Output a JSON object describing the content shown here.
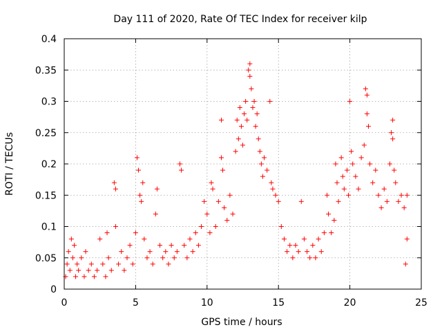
{
  "chart_data": {
    "type": "scatter",
    "title": "Day 111 of 2020, Rate Of TEC Index for receiver kilp",
    "xlabel": "GPS time / hours",
    "ylabel": "ROTI / TECUs",
    "xlim": [
      0,
      25
    ],
    "ylim": [
      0,
      0.4
    ],
    "xticks": [
      0,
      5,
      10,
      15,
      20,
      25
    ],
    "yticks": [
      0,
      0.05,
      0.1,
      0.15,
      0.2,
      0.25,
      0.3,
      0.35,
      0.4
    ],
    "xtick_labels": [
      "0",
      "5",
      "10",
      "15",
      "20",
      "25"
    ],
    "ytick_labels": [
      "0",
      "0.05",
      "0.1",
      "0.15",
      "0.2",
      "0.25",
      "0.3",
      "0.35",
      "0.4"
    ],
    "grid": true,
    "marker": "+",
    "marker_color": "#ff0000",
    "series": [
      {
        "name": "ROTI",
        "points": [
          [
            0.1,
            0.02
          ],
          [
            0.2,
            0.04
          ],
          [
            0.3,
            0.06
          ],
          [
            0.4,
            0.03
          ],
          [
            0.5,
            0.08
          ],
          [
            0.6,
            0.05
          ],
          [
            0.7,
            0.07
          ],
          [
            0.8,
            0.02
          ],
          [
            0.9,
            0.04
          ],
          [
            1.0,
            0.03
          ],
          [
            1.2,
            0.05
          ],
          [
            1.4,
            0.02
          ],
          [
            1.5,
            0.06
          ],
          [
            1.7,
            0.03
          ],
          [
            1.9,
            0.04
          ],
          [
            2.1,
            0.02
          ],
          [
            2.3,
            0.03
          ],
          [
            2.5,
            0.08
          ],
          [
            2.7,
            0.04
          ],
          [
            2.9,
            0.02
          ],
          [
            3.0,
            0.09
          ],
          [
            3.1,
            0.05
          ],
          [
            3.3,
            0.03
          ],
          [
            3.5,
            0.17
          ],
          [
            3.6,
            0.16
          ],
          [
            3.6,
            0.1
          ],
          [
            3.8,
            0.04
          ],
          [
            4.0,
            0.06
          ],
          [
            4.2,
            0.03
          ],
          [
            4.4,
            0.05
          ],
          [
            4.6,
            0.07
          ],
          [
            4.8,
            0.04
          ],
          [
            5.0,
            0.09
          ],
          [
            5.1,
            0.21
          ],
          [
            5.2,
            0.19
          ],
          [
            5.3,
            0.15
          ],
          [
            5.4,
            0.14
          ],
          [
            5.5,
            0.17
          ],
          [
            5.6,
            0.08
          ],
          [
            5.8,
            0.05
          ],
          [
            6.0,
            0.06
          ],
          [
            6.2,
            0.04
          ],
          [
            6.4,
            0.12
          ],
          [
            6.5,
            0.16
          ],
          [
            6.7,
            0.07
          ],
          [
            6.9,
            0.05
          ],
          [
            7.1,
            0.06
          ],
          [
            7.3,
            0.04
          ],
          [
            7.5,
            0.07
          ],
          [
            7.7,
            0.05
          ],
          [
            7.9,
            0.06
          ],
          [
            8.1,
            0.2
          ],
          [
            8.2,
            0.19
          ],
          [
            8.4,
            0.07
          ],
          [
            8.6,
            0.05
          ],
          [
            8.8,
            0.08
          ],
          [
            9.0,
            0.06
          ],
          [
            9.2,
            0.09
          ],
          [
            9.4,
            0.07
          ],
          [
            9.6,
            0.1
          ],
          [
            9.8,
            0.14
          ],
          [
            10.0,
            0.12
          ],
          [
            10.2,
            0.09
          ],
          [
            10.3,
            0.17
          ],
          [
            10.4,
            0.16
          ],
          [
            10.6,
            0.1
          ],
          [
            10.8,
            0.14
          ],
          [
            11.0,
            0.27
          ],
          [
            11.0,
            0.21
          ],
          [
            11.1,
            0.19
          ],
          [
            11.2,
            0.13
          ],
          [
            11.4,
            0.11
          ],
          [
            11.6,
            0.15
          ],
          [
            11.8,
            0.12
          ],
          [
            12.0,
            0.22
          ],
          [
            12.1,
            0.27
          ],
          [
            12.2,
            0.24
          ],
          [
            12.3,
            0.29
          ],
          [
            12.4,
            0.26
          ],
          [
            12.5,
            0.23
          ],
          [
            12.6,
            0.28
          ],
          [
            12.7,
            0.3
          ],
          [
            12.8,
            0.27
          ],
          [
            12.9,
            0.35
          ],
          [
            13.0,
            0.36
          ],
          [
            13.0,
            0.34
          ],
          [
            13.1,
            0.32
          ],
          [
            13.2,
            0.29
          ],
          [
            13.3,
            0.3
          ],
          [
            13.4,
            0.26
          ],
          [
            13.5,
            0.28
          ],
          [
            13.6,
            0.24
          ],
          [
            13.7,
            0.22
          ],
          [
            13.8,
            0.2
          ],
          [
            13.9,
            0.18
          ],
          [
            14.0,
            0.21
          ],
          [
            14.2,
            0.19
          ],
          [
            14.4,
            0.3
          ],
          [
            14.5,
            0.17
          ],
          [
            14.6,
            0.16
          ],
          [
            14.8,
            0.15
          ],
          [
            15.0,
            0.14
          ],
          [
            15.2,
            0.1
          ],
          [
            15.4,
            0.08
          ],
          [
            15.6,
            0.06
          ],
          [
            15.8,
            0.07
          ],
          [
            16.0,
            0.05
          ],
          [
            16.2,
            0.07
          ],
          [
            16.4,
            0.06
          ],
          [
            16.6,
            0.14
          ],
          [
            16.8,
            0.08
          ],
          [
            17.0,
            0.06
          ],
          [
            17.2,
            0.05
          ],
          [
            17.4,
            0.07
          ],
          [
            17.6,
            0.05
          ],
          [
            17.8,
            0.08
          ],
          [
            18.0,
            0.06
          ],
          [
            18.2,
            0.09
          ],
          [
            18.4,
            0.15
          ],
          [
            18.5,
            0.12
          ],
          [
            18.7,
            0.09
          ],
          [
            18.9,
            0.11
          ],
          [
            19.0,
            0.2
          ],
          [
            19.1,
            0.17
          ],
          [
            19.2,
            0.14
          ],
          [
            19.4,
            0.21
          ],
          [
            19.5,
            0.18
          ],
          [
            19.6,
            0.16
          ],
          [
            19.8,
            0.19
          ],
          [
            19.9,
            0.15
          ],
          [
            20.0,
            0.3
          ],
          [
            20.1,
            0.22
          ],
          [
            20.2,
            0.2
          ],
          [
            20.4,
            0.18
          ],
          [
            20.6,
            0.16
          ],
          [
            20.8,
            0.21
          ],
          [
            21.0,
            0.23
          ],
          [
            21.1,
            0.32
          ],
          [
            21.2,
            0.31
          ],
          [
            21.2,
            0.28
          ],
          [
            21.3,
            0.26
          ],
          [
            21.4,
            0.2
          ],
          [
            21.6,
            0.17
          ],
          [
            21.8,
            0.19
          ],
          [
            22.0,
            0.15
          ],
          [
            22.2,
            0.13
          ],
          [
            22.4,
            0.16
          ],
          [
            22.6,
            0.14
          ],
          [
            22.8,
            0.2
          ],
          [
            22.9,
            0.25
          ],
          [
            23.0,
            0.27
          ],
          [
            23.0,
            0.24
          ],
          [
            23.1,
            0.19
          ],
          [
            23.2,
            0.17
          ],
          [
            23.4,
            0.14
          ],
          [
            23.6,
            0.15
          ],
          [
            23.8,
            0.13
          ],
          [
            24.0,
            0.15
          ],
          [
            24.0,
            0.08
          ],
          [
            23.9,
            0.04
          ]
        ]
      }
    ]
  }
}
